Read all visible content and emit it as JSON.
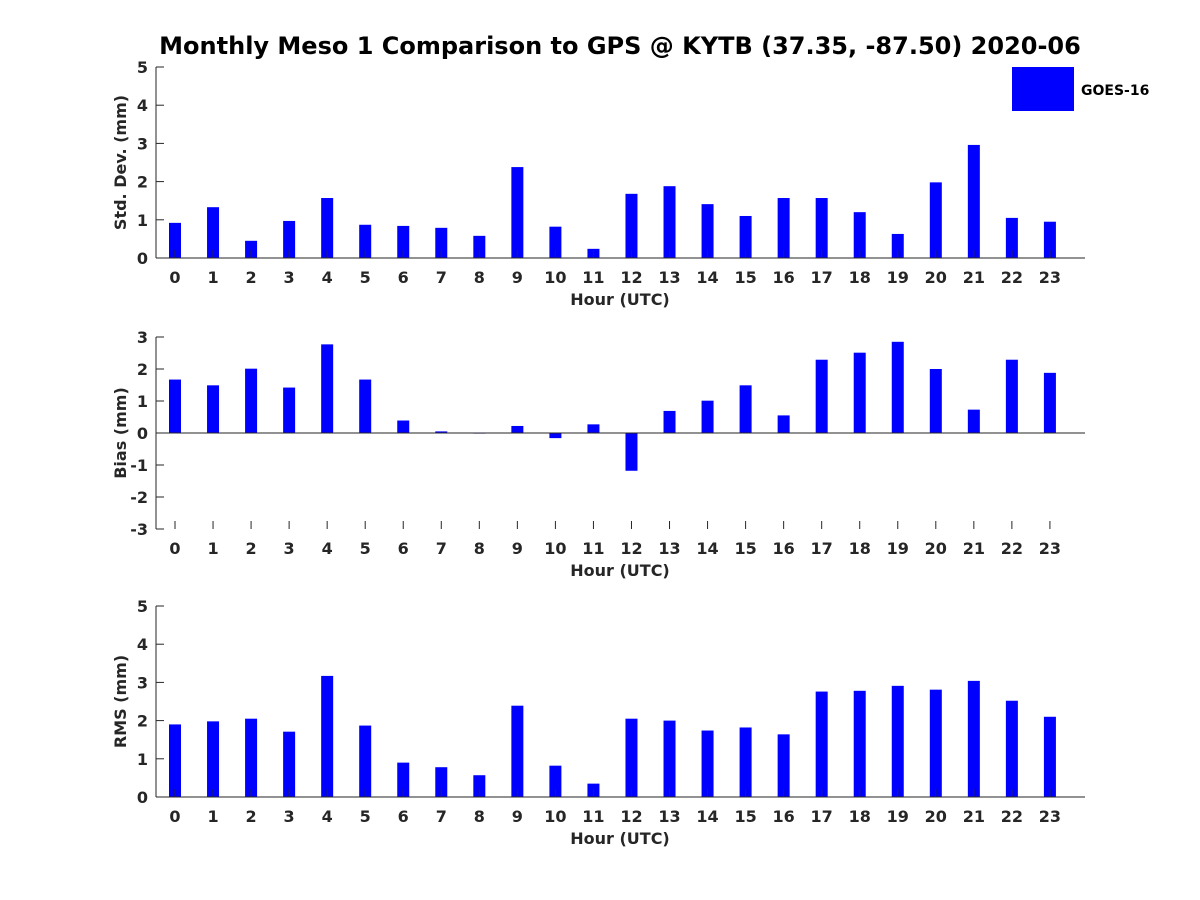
{
  "figure_title": "Monthly Meso 1 Comparison to GPS @ KYTB (37.35, -87.50) 2020-06",
  "legend": {
    "label": "GOES-16",
    "color": "#0000ff"
  },
  "chart_data": [
    {
      "type": "bar",
      "title": "Monthly Meso 1 Comparison to GPS @ KYTB (37.35, -87.50) 2020-06",
      "xlabel": "Hour (UTC)",
      "ylabel": "Std. Dev. (mm)",
      "ylim": [
        0,
        5
      ],
      "yticks": [
        0,
        1,
        2,
        3,
        4,
        5
      ],
      "categories": [
        "0",
        "1",
        "2",
        "3",
        "4",
        "5",
        "6",
        "7",
        "8",
        "9",
        "10",
        "11",
        "12",
        "13",
        "14",
        "15",
        "16",
        "17",
        "18",
        "19",
        "20",
        "21",
        "22",
        "23"
      ],
      "series": [
        {
          "name": "GOES-16",
          "color": "#0000ff",
          "values": [
            0.92,
            1.33,
            0.45,
            0.97,
            1.57,
            0.87,
            0.84,
            0.79,
            0.58,
            2.38,
            0.82,
            0.24,
            1.68,
            1.88,
            1.41,
            1.1,
            1.57,
            1.57,
            1.2,
            0.63,
            1.98,
            2.96,
            1.05,
            0.95
          ]
        }
      ]
    },
    {
      "type": "bar",
      "title": "",
      "xlabel": "Hour (UTC)",
      "ylabel": "Bias (mm)",
      "ylim": [
        -3,
        3
      ],
      "yticks": [
        -3,
        -2,
        -1,
        0,
        1,
        2,
        3
      ],
      "categories": [
        "0",
        "1",
        "2",
        "3",
        "4",
        "5",
        "6",
        "7",
        "8",
        "9",
        "10",
        "11",
        "12",
        "13",
        "14",
        "15",
        "16",
        "17",
        "18",
        "19",
        "20",
        "21",
        "22",
        "23"
      ],
      "series": [
        {
          "name": "GOES-16",
          "color": "#0000ff",
          "values": [
            1.67,
            1.49,
            2.01,
            1.42,
            2.77,
            1.67,
            0.39,
            0.05,
            -0.01,
            0.22,
            -0.16,
            0.27,
            -1.18,
            0.69,
            1.01,
            1.49,
            0.55,
            2.29,
            2.51,
            2.85,
            2.0,
            0.73,
            2.29,
            1.88
          ]
        }
      ]
    },
    {
      "type": "bar",
      "title": "",
      "xlabel": "Hour (UTC)",
      "ylabel": "RMS (mm)",
      "ylim": [
        0,
        5
      ],
      "yticks": [
        0,
        1,
        2,
        3,
        4,
        5
      ],
      "categories": [
        "0",
        "1",
        "2",
        "3",
        "4",
        "5",
        "6",
        "7",
        "8",
        "9",
        "10",
        "11",
        "12",
        "13",
        "14",
        "15",
        "16",
        "17",
        "18",
        "19",
        "20",
        "21",
        "22",
        "23"
      ],
      "series": [
        {
          "name": "GOES-16",
          "color": "#0000ff",
          "values": [
            1.9,
            1.98,
            2.05,
            1.71,
            3.17,
            1.87,
            0.9,
            0.78,
            0.57,
            2.39,
            0.82,
            0.35,
            2.05,
            2.0,
            1.74,
            1.82,
            1.64,
            2.76,
            2.78,
            2.91,
            2.81,
            3.04,
            2.52,
            2.1
          ]
        }
      ]
    }
  ]
}
